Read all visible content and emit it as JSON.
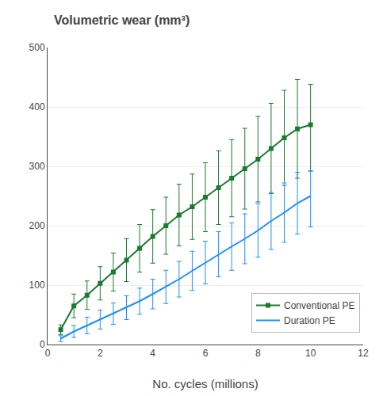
{
  "chart_data": {
    "type": "line",
    "title": "Volumetric wear (mm³)",
    "xlabel": "No. cycles (millions)",
    "x": [
      0.5,
      1.0,
      1.5,
      2.0,
      2.5,
      3.0,
      3.5,
      4.0,
      4.5,
      5.0,
      5.5,
      6.0,
      6.5,
      7.0,
      7.5,
      8.0,
      8.5,
      9.0,
      9.5,
      10.0
    ],
    "series": [
      {
        "name": "Conventional PE",
        "color": "#1a7a2e",
        "marker": "square",
        "line_style": "solid",
        "values": [
          25,
          65,
          83,
          103,
          122,
          142,
          162,
          182,
          200,
          218,
          232,
          248,
          264,
          280,
          296,
          312,
          330,
          348,
          363,
          370
        ],
        "error_low": [
          8,
          20,
          24,
          28,
          32,
          36,
          40,
          45,
          48,
          52,
          55,
          58,
          62,
          65,
          68,
          72,
          76,
          80,
          83,
          78
        ],
        "error_high": [
          8,
          20,
          24,
          28,
          32,
          36,
          40,
          45,
          48,
          52,
          55,
          58,
          62,
          65,
          68,
          72,
          76,
          80,
          83,
          68
        ]
      },
      {
        "name": "Duration PE",
        "color": "#1e8fff",
        "marker": "none",
        "line_style": "solid",
        "values": [
          10,
          22,
          32,
          42,
          52,
          62,
          73,
          85,
          97,
          110,
          124,
          138,
          152,
          165,
          178,
          192,
          208,
          222,
          238,
          250
        ],
        "error_low": [
          5,
          10,
          14,
          16,
          18,
          20,
          22,
          25,
          28,
          30,
          33,
          36,
          38,
          40,
          42,
          45,
          48,
          50,
          52,
          52
        ],
        "error_high": [
          5,
          10,
          14,
          16,
          18,
          20,
          22,
          25,
          28,
          30,
          33,
          36,
          38,
          40,
          42,
          45,
          48,
          50,
          52,
          42
        ]
      }
    ],
    "xlim": [
      0,
      12
    ],
    "ylim": [
      0,
      500
    ],
    "xticks": [
      0,
      2,
      4,
      6,
      8,
      10,
      12
    ],
    "yticks": [
      0,
      100,
      200,
      300,
      400,
      500
    ],
    "grid": true,
    "legend": "lower right"
  }
}
